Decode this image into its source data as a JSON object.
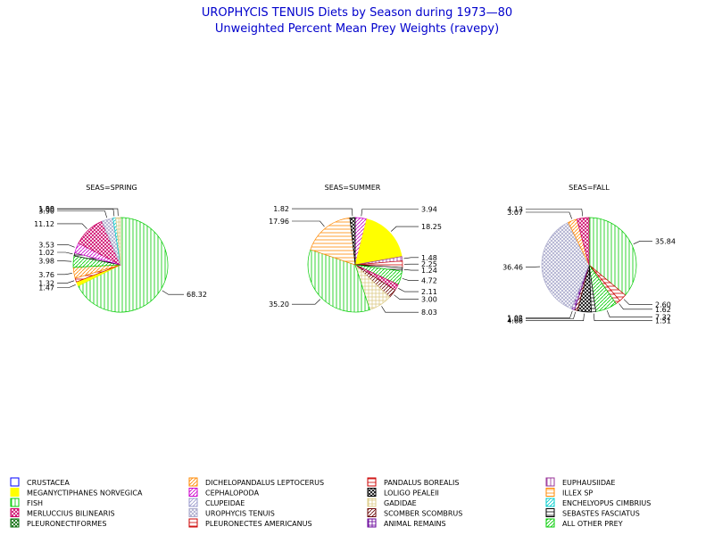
{
  "title": "UROPHYCIS TENUIS Diets by Season during 1973—80",
  "subtitle": "Unweighted Percent Mean Prey Weights (ravepy)",
  "colors": {
    "title": "#0000cc",
    "crustacea": "#0000ff",
    "meganyctiphanes": "#ffff00",
    "fish": "#00cc00",
    "merluccius": "#cc0066",
    "pleuronectiformes": "#006600",
    "dichelopandalus": "#ff8800",
    "cephalopoda": "#cc00cc",
    "clupeidae": "#9999cc",
    "urophycis": "#aaaacc",
    "pleuronectes": "#cc0000",
    "pandalus": "#cc0000",
    "loligo": "#000000",
    "gadidae": "#ddcc88",
    "scomber": "#660000",
    "animal_remains": "#660099",
    "euphausiidae": "#993399",
    "illex": "#ff8800",
    "enchelyopus": "#00cccc",
    "sebastes": "#000000",
    "all_other": "#00cc00"
  },
  "legend": [
    {
      "label": "CRUSTACEA",
      "key": "crustacea",
      "icon": "empty-square-icon"
    },
    {
      "label": "MEGANYCTIPHANES NORVEGICA",
      "key": "meganyctiphanes",
      "icon": "solid-fill-icon"
    },
    {
      "label": "FISH",
      "key": "fish",
      "icon": "vertical-hatch-icon"
    },
    {
      "label": "MERLUCCIUS BILINEARIS",
      "key": "merluccius",
      "icon": "crosshatch-icon"
    },
    {
      "label": "PLEURONECTIFORMES",
      "key": "pleuronectiformes",
      "icon": "x-cross-icon"
    },
    {
      "label": "DICHELOPANDALUS LEPTOCERUS",
      "key": "dichelopandalus",
      "icon": "diagonal-hatch-icon"
    },
    {
      "label": "CEPHALOPODA",
      "key": "cephalopoda",
      "icon": "diagonal-hatch-icon"
    },
    {
      "label": "CLUPEIDAE",
      "key": "clupeidae",
      "icon": "diagonal-hatch-icon"
    },
    {
      "label": "UROPHYCIS TENUIS",
      "key": "urophycis",
      "icon": "diagonal-cross-icon"
    },
    {
      "label": "PLEURONECTES AMERICANUS",
      "key": "pleuronectes",
      "icon": "horizontal-line-icon"
    },
    {
      "label": "PANDALUS BOREALIS",
      "key": "pandalus",
      "icon": "horizontal-hatch-icon"
    },
    {
      "label": "LOLIGO PEALEII",
      "key": "loligo",
      "icon": "x-cross-icon"
    },
    {
      "label": "GADIDAE",
      "key": "gadidae",
      "icon": "grid-hatch-icon"
    },
    {
      "label": "SCOMBER SCOMBRUS",
      "key": "scomber",
      "icon": "diagonal-hatch-icon"
    },
    {
      "label": "ANIMAL REMAINS",
      "key": "animal_remains",
      "icon": "grid-hatch-icon"
    },
    {
      "label": "EUPHAUSIIDAE",
      "key": "euphausiidae",
      "icon": "vertical-hatch-icon"
    },
    {
      "label": "ILLEX SP",
      "key": "illex",
      "icon": "horizontal-hatch-icon"
    },
    {
      "label": "ENCHELYOPUS CIMBRIUS",
      "key": "enchelyopus",
      "icon": "diagonal-hatch-icon"
    },
    {
      "label": "SEBASTES FASCIATUS",
      "key": "sebastes",
      "icon": "horizontal-line-icon"
    },
    {
      "label": "ALL OTHER PREY",
      "key": "all_other",
      "icon": "diagonal-hatch-icon"
    }
  ],
  "chart_data": [
    {
      "type": "pie",
      "title": "SEAS=SPRING",
      "slices": [
        {
          "category": "FISH",
          "value": 68.32,
          "label": "68.32"
        },
        {
          "category": "MEGANYCTIPHANES NORVEGICA",
          "value": 1.47,
          "label": "1.47"
        },
        {
          "category": "PANDALUS BOREALIS",
          "value": 1.32,
          "label": "1.32"
        },
        {
          "category": "DICHELOPANDALUS LEPTOCERUS",
          "value": 3.76,
          "label": "3.76"
        },
        {
          "category": "ALL OTHER PREY",
          "value": 3.98,
          "label": "3.98"
        },
        {
          "category": "SEBASTES FASCIATUS",
          "value": 1.02,
          "label": "1.02"
        },
        {
          "category": "CEPHALOPODA",
          "value": 3.53,
          "label": "3.53"
        },
        {
          "category": "MERLUCCIUS BILINEARIS",
          "value": 11.12,
          "label": "11.12"
        },
        {
          "category": "UROPHYCIS TENUIS",
          "value": 3.9,
          "label": "3.90"
        },
        {
          "category": "ENCHELYOPUS CIMBRIUS",
          "value": 1.0,
          "label": "1.00"
        },
        {
          "category": "GADIDAE",
          "value": 1.58,
          "label": "1.58"
        }
      ]
    },
    {
      "type": "pie",
      "title": "SEAS=SUMMER",
      "slices": [
        {
          "category": "CEPHALOPODA",
          "value": 3.94,
          "label": "3.94"
        },
        {
          "category": "MEGANYCTIPHANES NORVEGICA",
          "value": 18.25,
          "label": "18.25"
        },
        {
          "category": "EUPHAUSIIDAE",
          "value": 1.48,
          "label": "1.48"
        },
        {
          "category": "PANDALUS BOREALIS",
          "value": 2.25,
          "label": "2.25"
        },
        {
          "category": "SEBASTES FASCIATUS",
          "value": 1.24,
          "label": "1.24"
        },
        {
          "category": "ALL OTHER PREY",
          "value": 4.72,
          "label": "4.72"
        },
        {
          "category": "MERLUCCIUS BILINEARIS",
          "value": 2.11,
          "label": "2.11"
        },
        {
          "category": "SCOMBER SCOMBRUS",
          "value": 3.0,
          "label": "3.00"
        },
        {
          "category": "GADIDAE",
          "value": 8.03,
          "label": "8.03"
        },
        {
          "category": "FISH",
          "value": 35.2,
          "label": "35.20"
        },
        {
          "category": "ILLEX SP",
          "value": 17.96,
          "label": "17.96"
        },
        {
          "category": "LOLIGO PEALEII",
          "value": 1.82,
          "label": "1.82"
        }
      ]
    },
    {
      "type": "pie",
      "title": "SEAS=FALL",
      "slices": [
        {
          "category": "FISH",
          "value": 35.84,
          "label": "35.84"
        },
        {
          "category": "PANDALUS BOREALIS",
          "value": 2.6,
          "label": "2.60"
        },
        {
          "category": "PLEURONECTES AMERICANUS",
          "value": 1.62,
          "label": "1.62"
        },
        {
          "category": "ALL OTHER PREY",
          "value": 7.32,
          "label": "7.32"
        },
        {
          "category": "SEBASTES FASCIATUS",
          "value": 1.51,
          "label": "1.51"
        },
        {
          "category": "LOLIGO PEALEII",
          "value": 4.68,
          "label": "4.68"
        },
        {
          "category": "SCOMBER SCOMBRUS",
          "value": 1.05,
          "label": "1.05"
        },
        {
          "category": "ANIMAL REMAINS",
          "value": 1.02,
          "label": "1.02"
        },
        {
          "category": "UROPHYCIS TENUIS",
          "value": 36.46,
          "label": "36.46"
        },
        {
          "category": "DICHELOPANDALUS LEPTOCERUS",
          "value": 3.07,
          "label": "3.07"
        },
        {
          "category": "MERLUCCIUS BILINEARIS",
          "value": 4.13,
          "label": "4.13"
        }
      ]
    }
  ]
}
